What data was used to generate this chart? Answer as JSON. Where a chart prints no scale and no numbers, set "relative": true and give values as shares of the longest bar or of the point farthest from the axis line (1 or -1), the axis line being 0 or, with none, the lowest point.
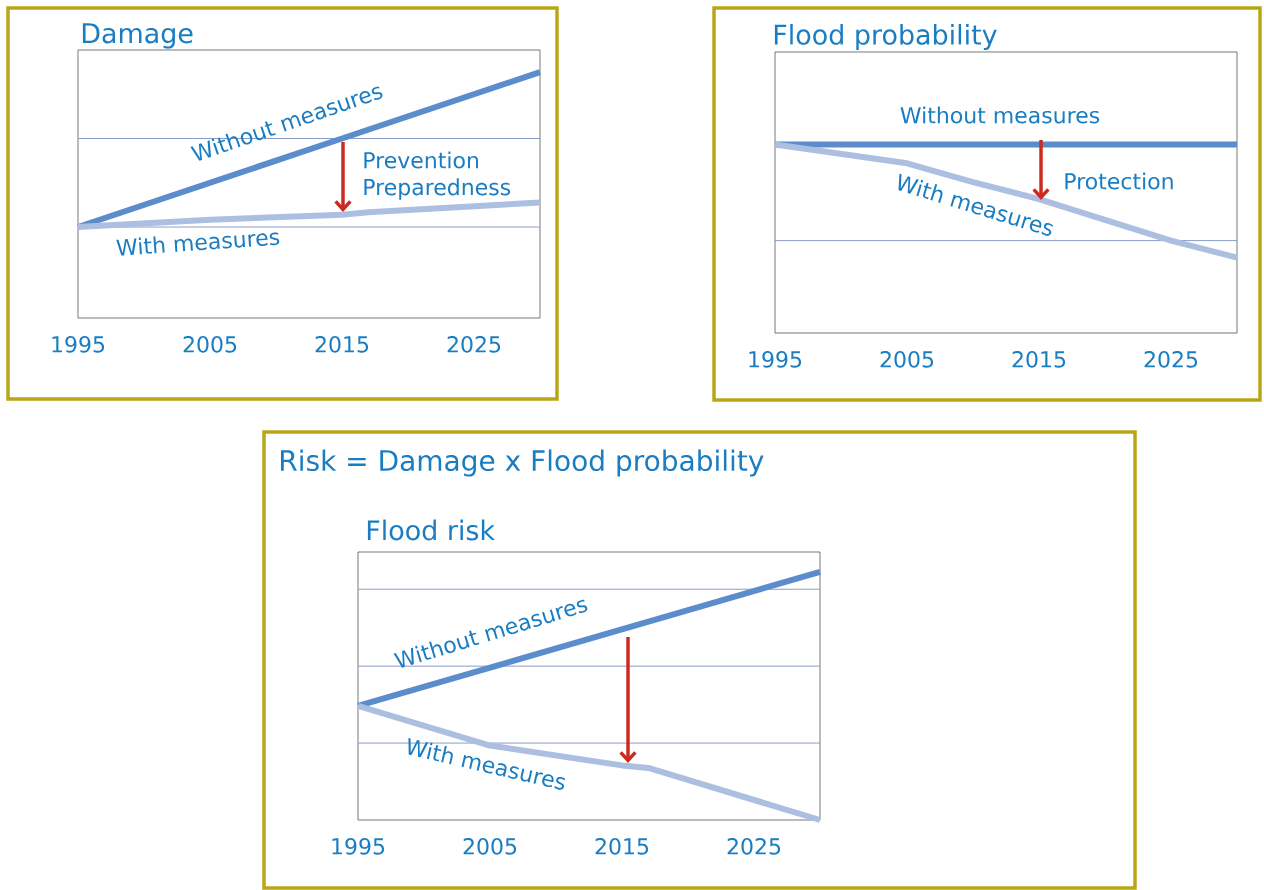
{
  "chart_data": [
    {
      "type": "line",
      "title": "Damage",
      "relative": true,
      "xlim": [
        1995,
        2030
      ],
      "xticks": [
        1995,
        2005,
        2015,
        2025
      ],
      "series": [
        {
          "name": "Without measures",
          "color": "#5b8dcd",
          "x": [
            1995,
            2015,
            2030
          ],
          "values": [
            0.37,
            0.73,
            1.0
          ]
        },
        {
          "name": "With measures",
          "color": "#acbfe1",
          "x": [
            1995,
            2005,
            2015,
            2017,
            2030
          ],
          "values": [
            0.37,
            0.4,
            0.42,
            0.43,
            0.47
          ]
        }
      ],
      "ref_lines": [
        {
          "axis": "y",
          "value": 0.37,
          "color": "#8196c4"
        },
        {
          "axis": "y",
          "value": 0.73,
          "color": "#8196c4"
        }
      ],
      "annotations": [
        "Prevention",
        "Preparedness"
      ]
    },
    {
      "type": "line",
      "title": "Flood probability",
      "relative": true,
      "xlim": [
        1995,
        2030
      ],
      "xticks": [
        1995,
        2005,
        2015,
        2025
      ],
      "series": [
        {
          "name": "Without measures",
          "color": "#5b8dcd",
          "x": [
            1995,
            2030
          ],
          "values": [
            1.0,
            1.0
          ]
        },
        {
          "name": "With measures",
          "color": "#acbfe1",
          "x": [
            1995,
            2005,
            2010,
            2015,
            2025,
            2030
          ],
          "values": [
            1.0,
            0.9,
            0.8,
            0.71,
            0.49,
            0.4
          ]
        }
      ],
      "ref_lines": [
        {
          "axis": "y",
          "value": 0.49,
          "color": "#8196c4"
        }
      ],
      "annotations": [
        "Protection"
      ]
    },
    {
      "type": "line",
      "title": "Flood risk",
      "relative": true,
      "xlim": [
        1995,
        2030
      ],
      "xticks": [
        1995,
        2005,
        2015,
        2025
      ],
      "series": [
        {
          "name": "Without measures",
          "color": "#5b8dcd",
          "x": [
            1995,
            2030
          ],
          "values": [
            0.46,
            1.0
          ]
        },
        {
          "name": "With measures",
          "color": "#acbfe1",
          "x": [
            1995,
            2005,
            2015,
            2017,
            2030
          ],
          "values": [
            0.46,
            0.3,
            0.22,
            0.21,
            0.0
          ]
        }
      ],
      "ref_lines": [
        {
          "axis": "y",
          "value": 0.31,
          "color": "#8196c4"
        },
        {
          "axis": "y",
          "value": 0.62,
          "color": "#8196c4"
        },
        {
          "axis": "y",
          "value": 0.93,
          "color": "#8196c4"
        }
      ],
      "annotations": [
        "Risk = Damage x Flood probability"
      ]
    }
  ]
}
